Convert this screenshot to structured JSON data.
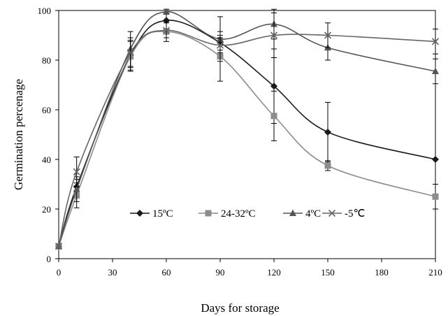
{
  "chart_data": {
    "type": "line",
    "title": "",
    "xlabel": "Days for storage",
    "ylabel": "Germination percenage",
    "x": [
      0,
      10,
      40,
      60,
      90,
      120,
      150,
      210
    ],
    "xlim": [
      0,
      210
    ],
    "ylim": [
      0,
      100
    ],
    "x_ticks": [
      0,
      30,
      60,
      90,
      120,
      150,
      180,
      210
    ],
    "y_ticks": [
      0,
      20,
      40,
      60,
      80,
      100
    ],
    "grid": false,
    "smooth": true,
    "legend_position": "center",
    "series": [
      {
        "name": "15ºC",
        "marker": "diamond",
        "color": "#1a1a1a",
        "values": [
          5,
          29,
          82,
          96,
          87,
          69.5,
          51,
          40
        ],
        "error": [
          0,
          3,
          6,
          4,
          3,
          15,
          12,
          0
        ]
      },
      {
        "name": "24-32ºC",
        "marker": "square",
        "color": "#8c8c8c",
        "values": [
          5,
          25.5,
          81.5,
          91.5,
          81.5,
          57.5,
          37.5,
          25
        ],
        "error": [
          0,
          5,
          6,
          4,
          10,
          10,
          2,
          5
        ]
      },
      {
        "name": "4ºC",
        "marker": "triangle",
        "color": "#555555",
        "values": [
          5,
          28,
          84.5,
          99.5,
          88.5,
          94.5,
          85,
          75.5
        ],
        "error": [
          0,
          5,
          7,
          1,
          9,
          6,
          5,
          5
        ]
      },
      {
        "name": "-5℃",
        "marker": "x",
        "color": "#666666",
        "values": [
          5,
          35,
          83,
          92,
          86,
          90,
          90,
          87.5
        ],
        "error": [
          0,
          6,
          6,
          3,
          3,
          9,
          5,
          5
        ]
      }
    ]
  }
}
